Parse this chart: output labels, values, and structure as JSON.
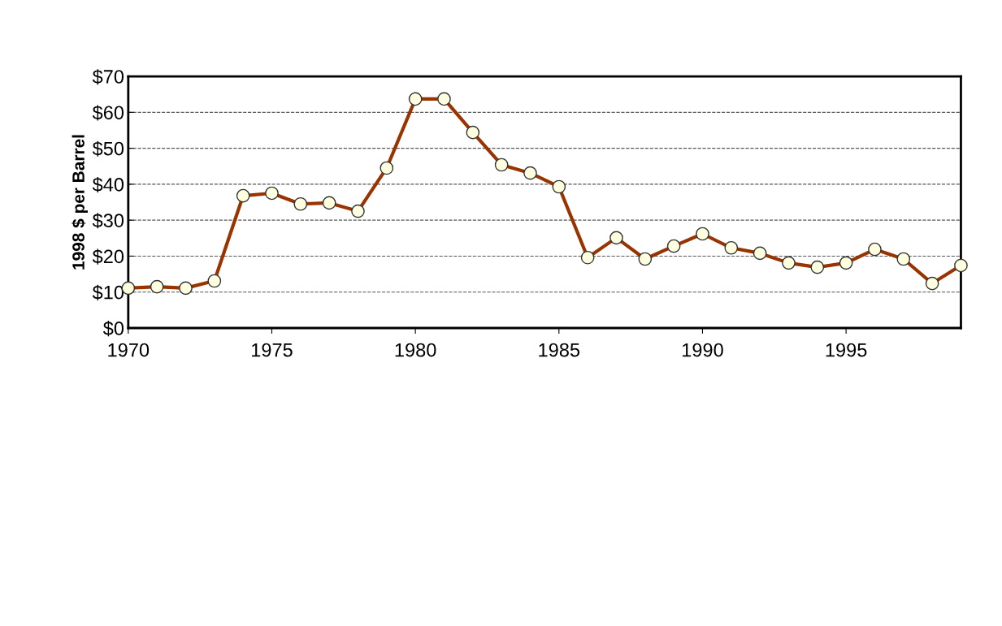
{
  "chart_data": {
    "type": "line",
    "ylabel": "1998 $ per Barrel",
    "x": [
      1970,
      1971,
      1972,
      1973,
      1974,
      1975,
      1976,
      1977,
      1978,
      1979,
      1980,
      1981,
      1982,
      1983,
      1984,
      1985,
      1986,
      1987,
      1988,
      1989,
      1990,
      1991,
      1992,
      1993,
      1994,
      1995,
      1996,
      1997,
      1998,
      1999
    ],
    "series": [
      {
        "color": "#993300",
        "values": [
          11.1,
          11.5,
          11.1,
          13.1,
          36.8,
          37.5,
          34.5,
          34.8,
          32.5,
          44.5,
          63.7,
          63.7,
          54.4,
          45.4,
          43.1,
          39.3,
          19.6,
          25.1,
          19.2,
          22.8,
          26.2,
          22.3,
          20.8,
          18.1,
          16.9,
          18.1,
          21.9,
          19.2,
          12.4,
          17.4
        ]
      }
    ],
    "xlim": [
      1970,
      1999
    ],
    "xticks": [
      1970,
      1975,
      1980,
      1985,
      1990,
      1995
    ],
    "ylim": [
      0,
      70
    ],
    "yticks": [
      {
        "value": 0,
        "label": "$0"
      },
      {
        "value": 10,
        "label": "$10"
      },
      {
        "value": 20,
        "label": "$20"
      },
      {
        "value": 30,
        "label": "$30"
      },
      {
        "value": 40,
        "label": "$40"
      },
      {
        "value": 50,
        "label": "$50"
      },
      {
        "value": 60,
        "label": "$60"
      },
      {
        "value": 70,
        "label": "$70"
      }
    ],
    "grid": "y",
    "marker": "circle",
    "line_style": "solid",
    "legend": false
  }
}
